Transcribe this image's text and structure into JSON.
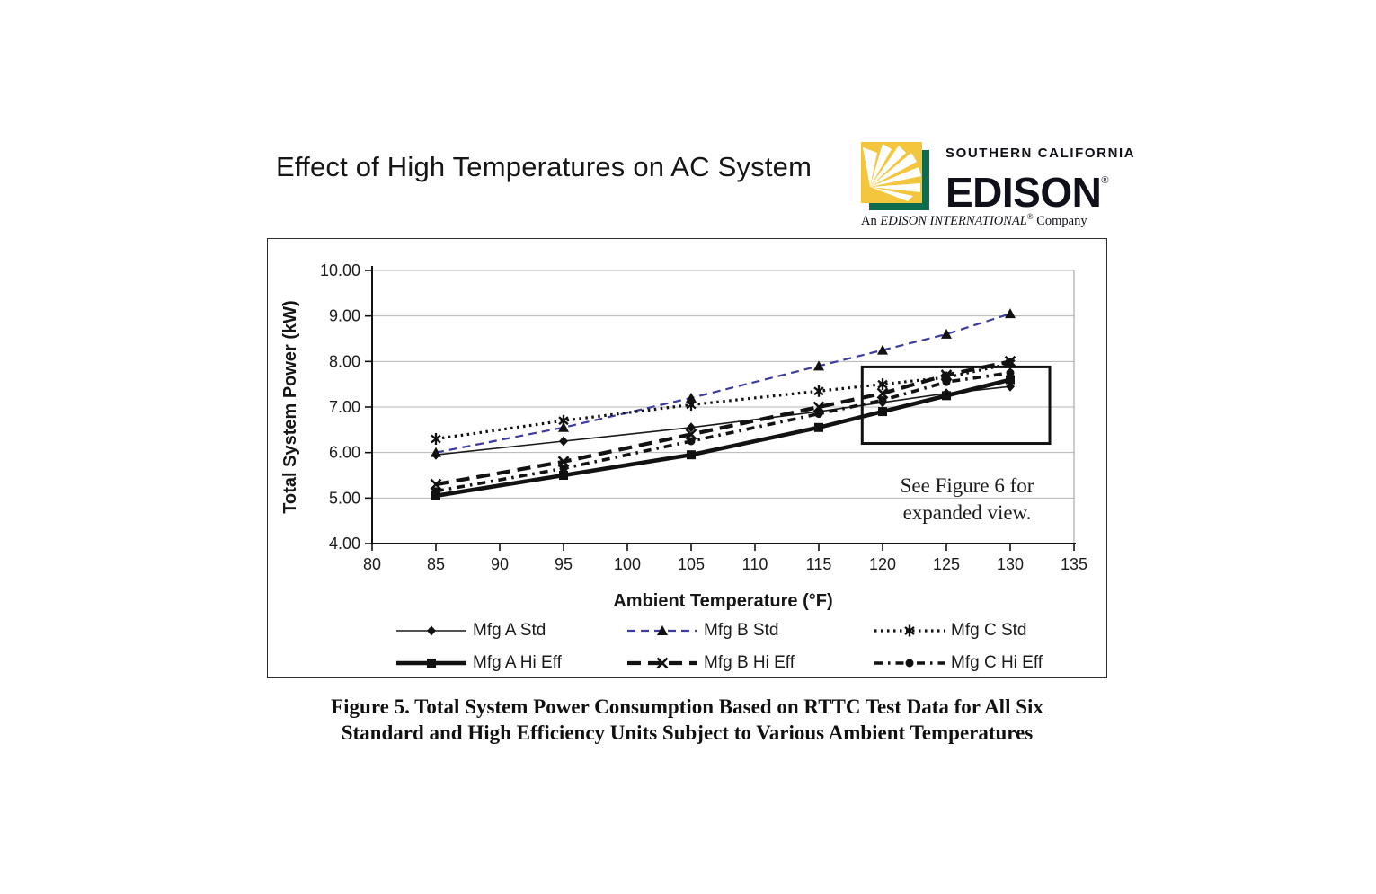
{
  "page": {
    "title": "Effect of High Temperatures on AC System"
  },
  "logo": {
    "brand_top": "SOUTHERN CALIFORNIA",
    "brand_main": "EDISON",
    "registered": "®",
    "tagline_prefix": "An ",
    "tagline_brand": "EDISON INTERNATIONAL",
    "tagline_reg": "®",
    "tagline_suffix": " Company",
    "colors": {
      "sun_yellow": "#F4C63E",
      "edison_green": "#0E6B4C",
      "ray_white": "#ffffff"
    }
  },
  "chart_data": {
    "type": "line",
    "title": "",
    "xlabel": "Ambient Temperature (°F)",
    "ylabel": "Total System Power (kW)",
    "xlim": [
      80,
      135
    ],
    "ylim": [
      4,
      10
    ],
    "x_ticks": [
      80,
      85,
      90,
      95,
      100,
      105,
      110,
      115,
      120,
      125,
      130,
      135
    ],
    "y_ticks": [
      4,
      5,
      6,
      7,
      8,
      9,
      10
    ],
    "y_tick_format_decimals": 2,
    "grid": "horizontal",
    "legend_position": "bottom",
    "x": [
      85,
      95,
      105,
      115,
      120,
      125,
      130
    ],
    "series": [
      {
        "name": "Mfg A Std",
        "values": [
          5.95,
          6.25,
          6.55,
          6.9,
          7.1,
          7.3,
          7.45
        ],
        "marker": "diamond",
        "line": "solid-thin",
        "color": "#1a1a1a"
      },
      {
        "name": "Mfg B Std",
        "values": [
          6.0,
          6.55,
          7.2,
          7.9,
          8.25,
          8.6,
          9.05
        ],
        "marker": "triangle",
        "line": "dash",
        "color": "#3c3c9e"
      },
      {
        "name": "Mfg C Std",
        "values": [
          6.3,
          6.7,
          7.05,
          7.35,
          7.5,
          7.65,
          7.95
        ],
        "marker": "star",
        "line": "dotted",
        "color": "#121212"
      },
      {
        "name": "Mfg A Hi Eff",
        "values": [
          5.05,
          5.5,
          5.95,
          6.55,
          6.9,
          7.25,
          7.6
        ],
        "marker": "square",
        "line": "solid-thick",
        "color": "#121212"
      },
      {
        "name": "Mfg B Hi Eff",
        "values": [
          5.3,
          5.8,
          6.4,
          7.0,
          7.3,
          7.7,
          8.0
        ],
        "marker": "x",
        "line": "longdash",
        "color": "#121212"
      },
      {
        "name": "Mfg C Hi Eff",
        "values": [
          5.15,
          5.65,
          6.25,
          6.85,
          7.15,
          7.55,
          7.75
        ],
        "marker": "dot",
        "line": "dashdot",
        "color": "#121212"
      }
    ],
    "annotation": {
      "box": {
        "x0": 118.4,
        "x1": 133.1,
        "y0": 6.2,
        "y1": 7.88
      },
      "note_line1": "See Figure 6 for",
      "note_line2": "expanded view."
    }
  },
  "caption": {
    "line1": "Figure 5. Total System Power Consumption Based on RTTC Test Data for All Six",
    "line2": "Standard and High Efficiency Units Subject to Various Ambient Temperatures"
  }
}
